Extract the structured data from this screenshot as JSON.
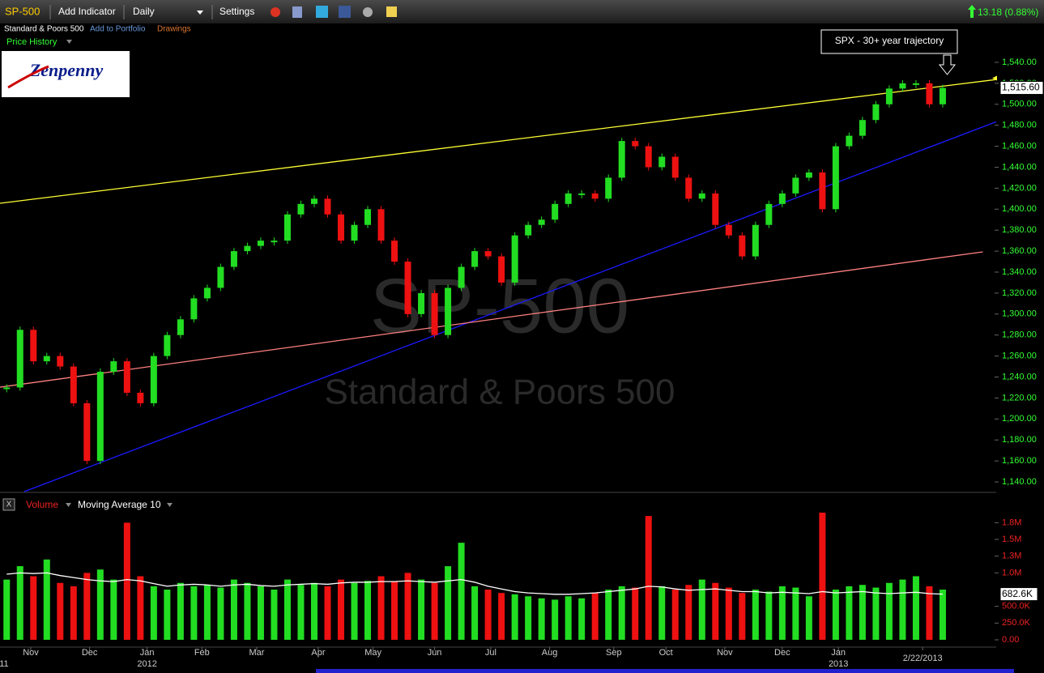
{
  "ui": {
    "symbol": "SP-500",
    "add_indicator": "Add Indicator",
    "interval": "Daily",
    "settings": "Settings",
    "change": "13.18 (0.88%)",
    "name": "Standard & Poors 500",
    "add_to_portfolio": "Add to Portfolio",
    "drawings": "Drawings",
    "panel": "Price History",
    "logo": "Zenpenny",
    "watermark": "SP-500",
    "watermark_sub": "Standard & Poors 500",
    "annotation": "SPX - 30+ year trajectory",
    "close_button": "X"
  },
  "chart_data": [
    {
      "type": "candlestick",
      "up_color": "#22dd22",
      "down_color": "#ee1111",
      "values": [
        1230,
        1285,
        1255,
        1260,
        1250,
        1215,
        1160,
        1245,
        1255,
        1225,
        1215,
        1260,
        1280,
        1295,
        1315,
        1325,
        1345,
        1360,
        1365,
        1370,
        1370,
        1395,
        1405,
        1410,
        1395,
        1370,
        1385,
        1400,
        1370,
        1350,
        1300,
        1320,
        1280,
        1325,
        1345,
        1360,
        1355,
        1330,
        1375,
        1385,
        1390,
        1405,
        1415,
        1415,
        1410,
        1430,
        1465,
        1460,
        1440,
        1450,
        1430,
        1410,
        1415,
        1385,
        1375,
        1355,
        1385,
        1405,
        1415,
        1430,
        1435,
        1400,
        1460,
        1470,
        1485,
        1500,
        1515,
        1520,
        1520,
        1500,
        1515.6
      ],
      "last_label": "1,515.60",
      "xlim": [
        0,
        74.5
      ],
      "ylim": [
        1130,
        1550
      ],
      "yticks": [
        {
          "value": 1140,
          "label": "1,140.00"
        },
        {
          "value": 1160,
          "label": "1,160.00"
        },
        {
          "value": 1180,
          "label": "1,180.00"
        },
        {
          "value": 1200,
          "label": "1,200.00"
        },
        {
          "value": 1220,
          "label": "1,220.00"
        },
        {
          "value": 1240,
          "label": "1,240.00"
        },
        {
          "value": 1260,
          "label": "1,260.00"
        },
        {
          "value": 1280,
          "label": "1,280.00"
        },
        {
          "value": 1300,
          "label": "1,300.00"
        },
        {
          "value": 1320,
          "label": "1,320.00"
        },
        {
          "value": 1340,
          "label": "1,340.00"
        },
        {
          "value": 1360,
          "label": "1,360.00"
        },
        {
          "value": 1380,
          "label": "1,380.00"
        },
        {
          "value": 1400,
          "label": "1,400.00"
        },
        {
          "value": 1420,
          "label": "1,420.00"
        },
        {
          "value": 1440,
          "label": "1,440.00"
        },
        {
          "value": 1460,
          "label": "1,460.00"
        },
        {
          "value": 1480,
          "label": "1,480.00"
        },
        {
          "value": 1500,
          "label": "1,500.00"
        },
        {
          "value": 1520,
          "label": "1,520.00"
        },
        {
          "value": 1540,
          "label": "1,540.00"
        }
      ],
      "lines": [
        {
          "color": "#ffff33",
          "x": [
            0,
            74.5
          ],
          "y": [
            1405.6,
            1523.6
          ]
        },
        {
          "color": "#1a1aff",
          "x": [
            1.8,
            74.5
          ],
          "y": [
            1130.7,
            1483.3
          ]
        },
        {
          "color": "#ff8080",
          "x": [
            0,
            73.5
          ],
          "y": [
            1230.3,
            1359.3
          ]
        }
      ]
    },
    {
      "type": "bar",
      "xlim": [
        0,
        74.5
      ],
      "ylim": [
        0,
        1900000
      ],
      "series": [
        {
          "name": "Volume",
          "values": [
            900000,
            1100000,
            950000,
            1200000,
            850000,
            800000,
            1000000,
            1050000,
            900000,
            1750000,
            950000,
            800000,
            750000,
            850000,
            800000,
            820000,
            780000,
            900000,
            850000,
            800000,
            750000,
            900000,
            820000,
            850000,
            800000,
            900000,
            850000,
            880000,
            950000,
            870000,
            1000000,
            900000,
            850000,
            1100000,
            1450000,
            800000,
            750000,
            700000,
            680000,
            650000,
            620000,
            600000,
            650000,
            620000,
            700000,
            750000,
            800000,
            780000,
            1850000,
            800000,
            750000,
            820000,
            900000,
            850000,
            780000,
            700000,
            750000,
            720000,
            800000,
            780000,
            650000,
            1900000,
            750000,
            800000,
            820000,
            780000,
            850000,
            900000,
            950000,
            800000,
            750000
          ]
        },
        {
          "name": "Moving Average 10",
          "color": "#ffffff",
          "values": [
            980000,
            1000000,
            990000,
            1000000,
            960000,
            930000,
            900000,
            880000,
            870000,
            900000,
            880000,
            840000,
            800000,
            820000,
            830000,
            820000,
            800000,
            820000,
            830000,
            810000,
            800000,
            820000,
            830000,
            840000,
            830000,
            850000,
            860000,
            860000,
            870000,
            870000,
            880000,
            870000,
            860000,
            880000,
            900000,
            860000,
            800000,
            760000,
            720000,
            700000,
            690000,
            680000,
            680000,
            690000,
            700000,
            720000,
            740000,
            760000,
            800000,
            790000,
            760000,
            740000,
            750000,
            760000,
            740000,
            720000,
            720000,
            700000,
            710000,
            700000,
            690000,
            720000,
            700000,
            710000,
            720000,
            700000,
            690000,
            700000,
            710000,
            690000,
            682600
          ],
          "last_label": "682.6K"
        }
      ],
      "yticks": [
        {
          "value": 0,
          "label": "0.00"
        },
        {
          "value": 250000,
          "label": "250.0K"
        },
        {
          "value": 500000,
          "label": "500.0K"
        },
        {
          "value": 1000000,
          "label": "1.0M"
        },
        {
          "value": 1250000,
          "label": "1.3M"
        },
        {
          "value": 1500000,
          "label": "1.5M"
        },
        {
          "value": 1750000,
          "label": "1.8M"
        }
      ],
      "xticks": [
        {
          "value": 2.3,
          "label": "Nov"
        },
        {
          "value": 6.7,
          "label": "Dec"
        },
        {
          "value": 11,
          "label": "Jan"
        },
        {
          "value": 15.1,
          "label": "Feb"
        },
        {
          "value": 19.2,
          "label": "Mar"
        },
        {
          "value": 23.8,
          "label": "Apr"
        },
        {
          "value": 27.9,
          "label": "May"
        },
        {
          "value": 32.5,
          "label": "Jun"
        },
        {
          "value": 36.7,
          "label": "Jul"
        },
        {
          "value": 41.1,
          "label": "Aug"
        },
        {
          "value": 45.9,
          "label": "Sep"
        },
        {
          "value": 49.8,
          "label": "Oct"
        },
        {
          "value": 54.2,
          "label": "Nov"
        },
        {
          "value": 58.5,
          "label": "Dec"
        },
        {
          "value": 62.7,
          "label": "Jan"
        },
        {
          "value": 69,
          "label": "2/22/2013"
        }
      ],
      "year_ticks": [
        {
          "value": 0.3,
          "label": "11"
        },
        {
          "value": 11,
          "label": "2012"
        },
        {
          "value": 62.7,
          "label": "2013"
        }
      ]
    }
  ]
}
